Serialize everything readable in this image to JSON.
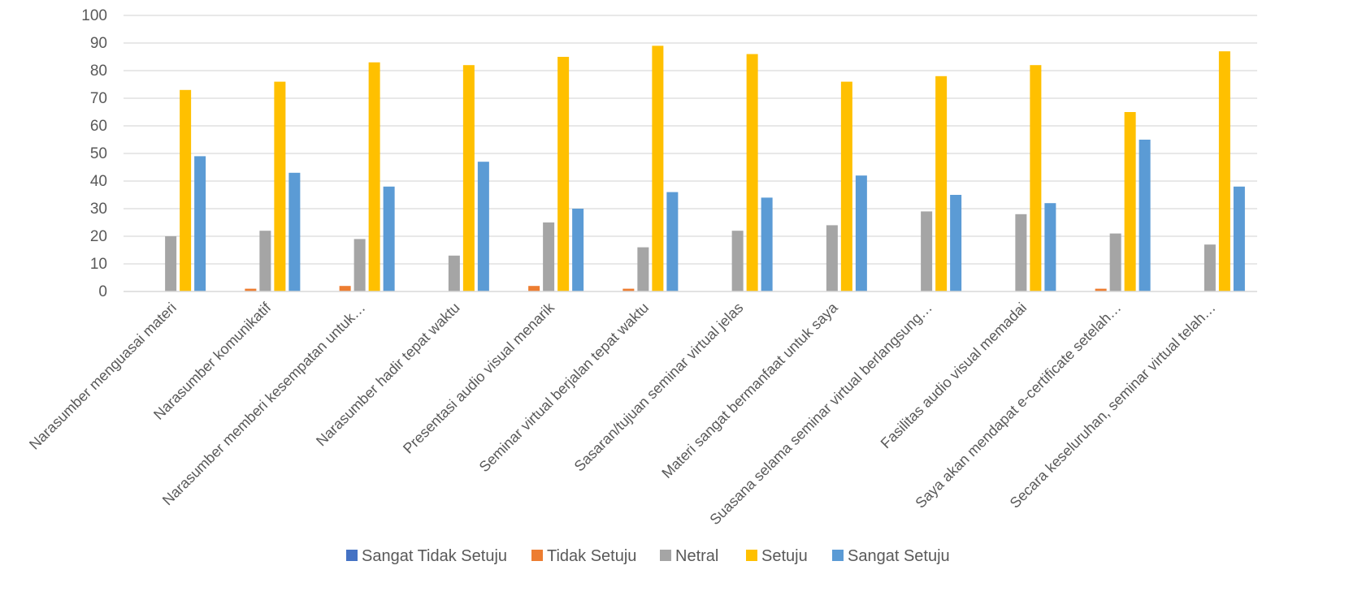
{
  "chart_data": {
    "type": "bar",
    "title": "",
    "xlabel": "",
    "ylabel": "",
    "ylim": [
      0,
      100
    ],
    "yticks": [
      0,
      10,
      20,
      30,
      40,
      50,
      60,
      70,
      80,
      90,
      100
    ],
    "grid": true,
    "legend_position": "bottom",
    "categories": [
      "Narasumber menguasai materi",
      "Narasumber komunikatif",
      "Narasumber memberi kesempatan untuk…",
      "Narasumber hadir tepat waktu",
      "Presentasi audio visual menarik",
      "Seminar virtual berjalan tepat waktu",
      "Sasaran/tujuan seminar virtual jelas",
      "Materi sangat bermanfaat untuk saya",
      "Suasana selama seminar virtual berlangsung…",
      "Fasilitas audio visual memadai",
      "Saya akan mendapat e-certificate setelah…",
      "Secara keseluruhan, seminar virtual telah…"
    ],
    "series": [
      {
        "name": "Sangat Tidak Setuju",
        "color": "#4472c4",
        "values": [
          0,
          0,
          0,
          0,
          0,
          0,
          0,
          0,
          0,
          0,
          0,
          0
        ]
      },
      {
        "name": "Tidak Setuju",
        "color": "#ed7d31",
        "values": [
          0,
          1,
          2,
          0,
          2,
          1,
          0,
          0,
          0,
          0,
          1,
          0
        ]
      },
      {
        "name": "Netral",
        "color": "#a5a5a5",
        "values": [
          20,
          22,
          19,
          13,
          25,
          16,
          22,
          24,
          29,
          28,
          21,
          17
        ]
      },
      {
        "name": "Setuju",
        "color": "#ffc000",
        "values": [
          73,
          76,
          83,
          82,
          85,
          89,
          86,
          76,
          78,
          82,
          65,
          87
        ]
      },
      {
        "name": "Sangat Setuju",
        "color": "#5b9bd5",
        "values": [
          49,
          43,
          38,
          47,
          30,
          36,
          34,
          42,
          35,
          32,
          55,
          38
        ]
      }
    ]
  }
}
